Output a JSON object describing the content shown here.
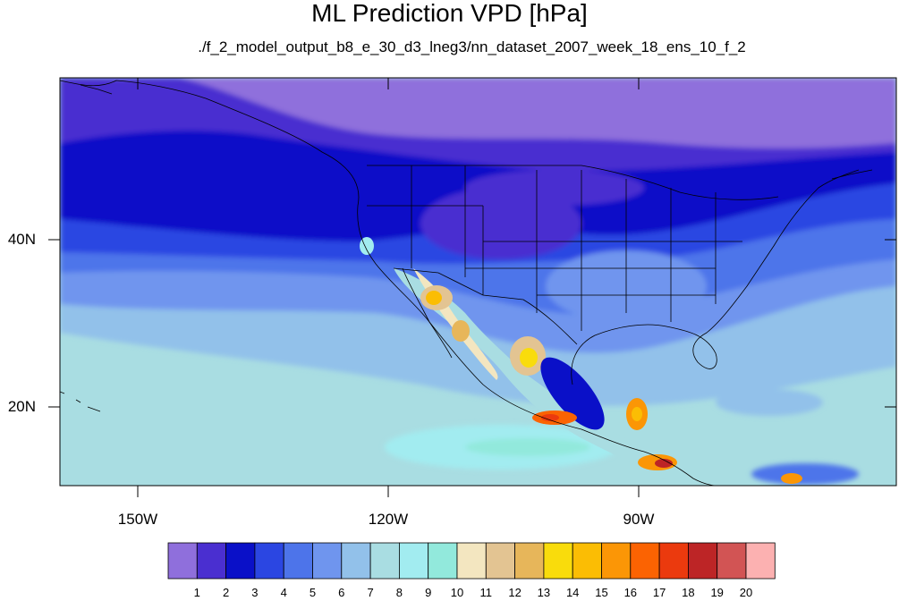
{
  "title": "ML Prediction VPD [hPa]",
  "subtitle": "./f_2_model_output_b8_e_30_d3_lneg3/nn_dataset_2007_week_18_ens_10_f_2",
  "map": {
    "projection": "cylindrical-equidistant",
    "lon_range": [
      -159,
      -56
    ],
    "lat_range": [
      11,
      58
    ],
    "lat_labels": [
      "40N",
      "20N"
    ],
    "lon_labels": [
      "150W",
      "120W",
      "90W"
    ],
    "features": [
      "coastlines",
      "us-state-borders",
      "national-borders"
    ]
  },
  "colorbar": {
    "colors": [
      "#8f6fdc",
      "#4a2fd0",
      "#0a10c8",
      "#2b46e2",
      "#4d74ea",
      "#6f95ee",
      "#92c1ea",
      "#a9dde2",
      "#a2ecf0",
      "#92e9dc",
      "#f3e6c0",
      "#e3c492",
      "#e7b65a",
      "#f9dc0c",
      "#fbbd04",
      "#fb9606",
      "#fb6302",
      "#eb3a0e",
      "#bd2526",
      "#d25454",
      "#fcb1b1"
    ],
    "labels": [
      "1",
      "2",
      "3",
      "4",
      "5",
      "6",
      "7",
      "8",
      "9",
      "10",
      "11",
      "12",
      "13",
      "14",
      "15",
      "16",
      "17",
      "18",
      "19",
      "20"
    ]
  }
}
